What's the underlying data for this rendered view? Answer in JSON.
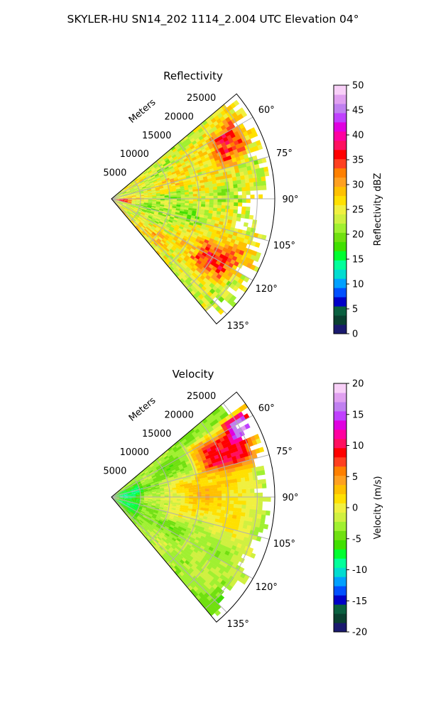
{
  "figure": {
    "suptitle": "SKYLER-HU  SN14_202  1114_2.004 UTC Elevation 04°"
  },
  "chart_data": [
    {
      "type": "heatmap",
      "subtype": "polar-sector",
      "title": "Reflectivity",
      "radial_axis": {
        "label": "Meters",
        "range": [
          0,
          28000
        ],
        "ticks": [
          5000,
          10000,
          15000,
          20000,
          25000
        ],
        "tick_labels": [
          "5000",
          "10000",
          "15000",
          "20000",
          "25000"
        ]
      },
      "azimuth_axis": {
        "range_deg": [
          50,
          140
        ],
        "gridlines_deg": [
          60,
          75,
          90,
          105,
          120,
          135
        ],
        "tick_labels": [
          "60°",
          "75°",
          "90°",
          "105°",
          "120°",
          "135°"
        ]
      },
      "grid": true,
      "colorbar": {
        "label": "Reflectivity dBZ",
        "range": [
          0,
          50
        ],
        "ticks": [
          0,
          5,
          10,
          15,
          20,
          25,
          30,
          35,
          40,
          45,
          50
        ],
        "tick_labels": [
          "0",
          "5",
          "10",
          "15",
          "20",
          "25",
          "30",
          "35",
          "40",
          "45",
          "50"
        ]
      },
      "palette": [
        "#1a1a6e",
        "#0a4030",
        "#0a6040",
        "#0000c8",
        "#0050ff",
        "#00a0ff",
        "#00dcd0",
        "#00ff9a",
        "#00ff30",
        "#40e000",
        "#70e010",
        "#a0f030",
        "#d0f040",
        "#f0f040",
        "#ffe000",
        "#ffc000",
        "#ffa020",
        "#ff8000",
        "#ff4020",
        "#ff0000",
        "#ff1060",
        "#ff00a0",
        "#e000e0",
        "#c040ff",
        "#c080f0",
        "#e0a0f0",
        "#f8d0f8"
      ],
      "field_regions": [
        {
          "az_deg": [
            55,
            75
          ],
          "range_m": [
            18000,
            26000
          ],
          "dbz": 33
        },
        {
          "az_deg": [
            110,
            130
          ],
          "range_m": [
            16000,
            25000
          ],
          "dbz": 34
        },
        {
          "az_deg": [
            75,
            115
          ],
          "range_m": [
            3000,
            16000
          ],
          "dbz": 22
        },
        {
          "az_deg": [
            85,
            110
          ],
          "range_m": [
            0,
            4000
          ],
          "dbz": 33
        },
        {
          "az_deg": [
            50,
            140
          ],
          "range_m": [
            0,
            28000
          ],
          "dbz": 25
        }
      ]
    },
    {
      "type": "heatmap",
      "subtype": "polar-sector",
      "title": "Velocity",
      "radial_axis": {
        "label": "Meters",
        "range": [
          0,
          28000
        ],
        "ticks": [
          5000,
          10000,
          15000,
          20000,
          25000
        ],
        "tick_labels": [
          "5000",
          "10000",
          "15000",
          "20000",
          "25000"
        ]
      },
      "azimuth_axis": {
        "range_deg": [
          50,
          140
        ],
        "gridlines_deg": [
          60,
          75,
          90,
          105,
          120,
          135
        ],
        "tick_labels": [
          "60°",
          "75°",
          "90°",
          "105°",
          "120°",
          "135°"
        ]
      },
      "grid": true,
      "colorbar": {
        "label": "Velocity (m/s)",
        "range": [
          -20,
          20
        ],
        "ticks": [
          -20,
          -15,
          -10,
          -5,
          0,
          5,
          10,
          15,
          20
        ],
        "tick_labels": [
          "-20",
          "-15",
          "-10",
          "-5",
          "0",
          "5",
          "10",
          "15",
          "20"
        ]
      },
      "palette": [
        "#1a1a6e",
        "#0a4030",
        "#0a6040",
        "#0000c8",
        "#0050ff",
        "#00a0ff",
        "#00dcd0",
        "#00ff9a",
        "#00ff30",
        "#40e000",
        "#70e010",
        "#a0f030",
        "#d0f040",
        "#f0f040",
        "#ffe000",
        "#ffc000",
        "#ffa020",
        "#ff8000",
        "#ff4020",
        "#ff0000",
        "#ff1060",
        "#ff00a0",
        "#e000e0",
        "#c040ff",
        "#c080f0",
        "#e0a0f0",
        "#f8d0f8"
      ],
      "field_regions": [
        {
          "az_deg": [
            50,
            140
          ],
          "range_m": [
            0,
            6000
          ],
          "ms": -8
        },
        {
          "az_deg": [
            55,
            68
          ],
          "range_m": [
            22000,
            28000
          ],
          "ms": 15
        },
        {
          "az_deg": [
            55,
            80
          ],
          "range_m": [
            14000,
            28000
          ],
          "ms": 9
        },
        {
          "az_deg": [
            70,
            115
          ],
          "range_m": [
            8000,
            28000
          ],
          "ms": 2
        },
        {
          "az_deg": [
            115,
            140
          ],
          "range_m": [
            6000,
            28000
          ],
          "ms": -3
        }
      ]
    }
  ]
}
